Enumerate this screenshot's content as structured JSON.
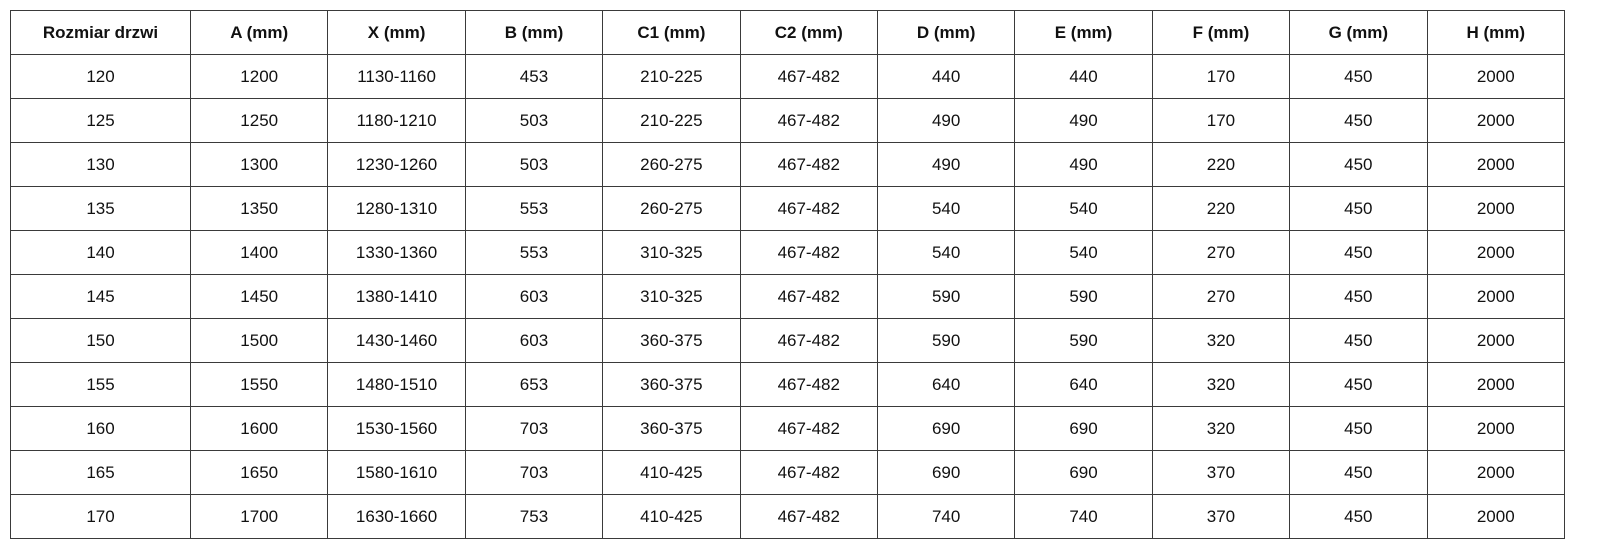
{
  "table": {
    "headers": [
      "Rozmiar drzwi",
      "A (mm)",
      "X (mm)",
      "B (mm)",
      "C1 (mm)",
      "C2 (mm)",
      "D (mm)",
      "E (mm)",
      "F (mm)",
      "G (mm)",
      "H (mm)"
    ],
    "rows": [
      [
        "120",
        "1200",
        "1130-1160",
        "453",
        "210-225",
        "467-482",
        "440",
        "440",
        "170",
        "450",
        "2000"
      ],
      [
        "125",
        "1250",
        "1180-1210",
        "503",
        "210-225",
        "467-482",
        "490",
        "490",
        "170",
        "450",
        "2000"
      ],
      [
        "130",
        "1300",
        "1230-1260",
        "503",
        "260-275",
        "467-482",
        "490",
        "490",
        "220",
        "450",
        "2000"
      ],
      [
        "135",
        "1350",
        "1280-1310",
        "553",
        "260-275",
        "467-482",
        "540",
        "540",
        "220",
        "450",
        "2000"
      ],
      [
        "140",
        "1400",
        "1330-1360",
        "553",
        "310-325",
        "467-482",
        "540",
        "540",
        "270",
        "450",
        "2000"
      ],
      [
        "145",
        "1450",
        "1380-1410",
        "603",
        "310-325",
        "467-482",
        "590",
        "590",
        "270",
        "450",
        "2000"
      ],
      [
        "150",
        "1500",
        "1430-1460",
        "603",
        "360-375",
        "467-482",
        "590",
        "590",
        "320",
        "450",
        "2000"
      ],
      [
        "155",
        "1550",
        "1480-1510",
        "653",
        "360-375",
        "467-482",
        "640",
        "640",
        "320",
        "450",
        "2000"
      ],
      [
        "160",
        "1600",
        "1530-1560",
        "703",
        "360-375",
        "467-482",
        "690",
        "690",
        "320",
        "450",
        "2000"
      ],
      [
        "165",
        "1650",
        "1580-1610",
        "703",
        "410-425",
        "467-482",
        "690",
        "690",
        "370",
        "450",
        "2000"
      ],
      [
        "170",
        "1700",
        "1630-1660",
        "753",
        "410-425",
        "467-482",
        "740",
        "740",
        "370",
        "450",
        "2000"
      ]
    ]
  }
}
